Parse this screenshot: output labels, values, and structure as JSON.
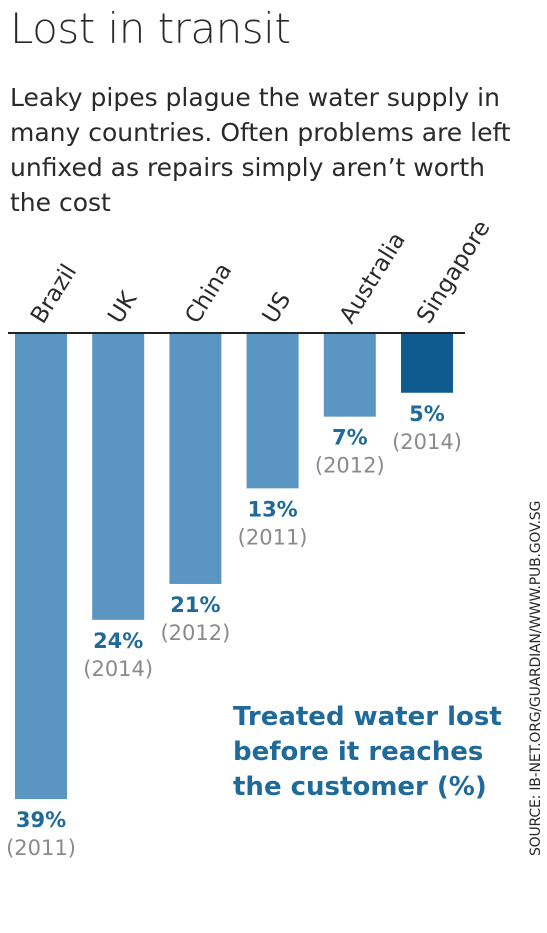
{
  "title": "Lost in transit",
  "subtitle": "Leaky pipes plague the water supply in many countries. Often problems are left unfixed as repairs simply aren’t worth the cost",
  "annotation": "Treated water lost before it reaches the customer (%)",
  "source": "SOURCE: IB-NET.ORG/GUARDIAN/WWW.PUB.GOV.SG",
  "colors": {
    "bar": "#5b95c2",
    "highlight_bar": "#0f5a8f",
    "value_text": "#1f6a99",
    "year_text": "#8a8a8a",
    "axis_line": "#222222"
  },
  "chart_data": {
    "type": "bar",
    "orientation": "vertical-downward",
    "categories": [
      "Brazil",
      "UK",
      "China",
      "US",
      "Australia",
      "Singapore"
    ],
    "values": [
      39,
      24,
      21,
      13,
      7,
      5
    ],
    "value_labels": [
      "39%",
      "24%",
      "21%",
      "13%",
      "7%",
      "5%"
    ],
    "year_labels": [
      "(2011)",
      "(2014)",
      "(2012)",
      "(2011)",
      "(2012)",
      "(2014)"
    ],
    "highlight": "Singapore",
    "ylim": [
      0,
      40
    ],
    "grid": false
  }
}
